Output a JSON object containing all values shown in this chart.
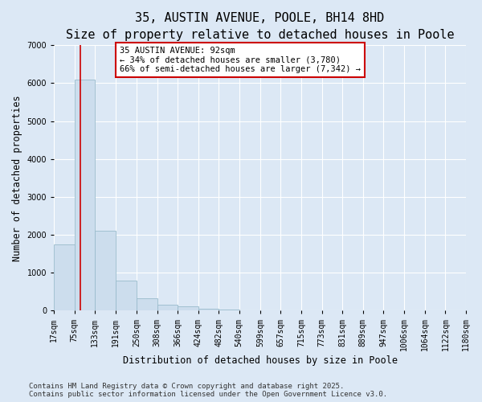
{
  "title": "35, AUSTIN AVENUE, POOLE, BH14 8HD",
  "subtitle": "Size of property relative to detached houses in Poole",
  "xlabel": "Distribution of detached houses by size in Poole",
  "ylabel": "Number of detached properties",
  "bin_labels": [
    "17sqm",
    "75sqm",
    "133sqm",
    "191sqm",
    "250sqm",
    "308sqm",
    "366sqm",
    "424sqm",
    "482sqm",
    "540sqm",
    "599sqm",
    "657sqm",
    "715sqm",
    "773sqm",
    "831sqm",
    "889sqm",
    "947sqm",
    "1006sqm",
    "1064sqm",
    "1122sqm",
    "1180sqm"
  ],
  "bin_edges": [
    17,
    75,
    133,
    191,
    250,
    308,
    366,
    424,
    482,
    540,
    599,
    657,
    715,
    773,
    831,
    889,
    947,
    1006,
    1064,
    1122,
    1180
  ],
  "bar_heights": [
    1750,
    6100,
    2100,
    800,
    330,
    150,
    120,
    55,
    30,
    0,
    0,
    0,
    0,
    0,
    0,
    0,
    0,
    0,
    0,
    0
  ],
  "bar_color": "#ccdded",
  "bar_edge_color": "#99bbcc",
  "property_sqm": 92,
  "vline_color": "#cc0000",
  "annotation_text": "35 AUSTIN AVENUE: 92sqm\n← 34% of detached houses are smaller (3,780)\n66% of semi-detached houses are larger (7,342) →",
  "annotation_box_color": "#ffffff",
  "annotation_box_edge": "#cc0000",
  "ylim": [
    0,
    7000
  ],
  "yticks": [
    0,
    1000,
    2000,
    3000,
    4000,
    5000,
    6000,
    7000
  ],
  "bg_color": "#dce8f5",
  "plot_bg_color": "#dce8f5",
  "grid_color": "#ffffff",
  "footer_line1": "Contains HM Land Registry data © Crown copyright and database right 2025.",
  "footer_line2": "Contains public sector information licensed under the Open Government Licence v3.0.",
  "title_fontsize": 11,
  "subtitle_fontsize": 9.5,
  "axis_label_fontsize": 8.5,
  "tick_fontsize": 7,
  "annotation_fontsize": 7.5,
  "footer_fontsize": 6.5
}
